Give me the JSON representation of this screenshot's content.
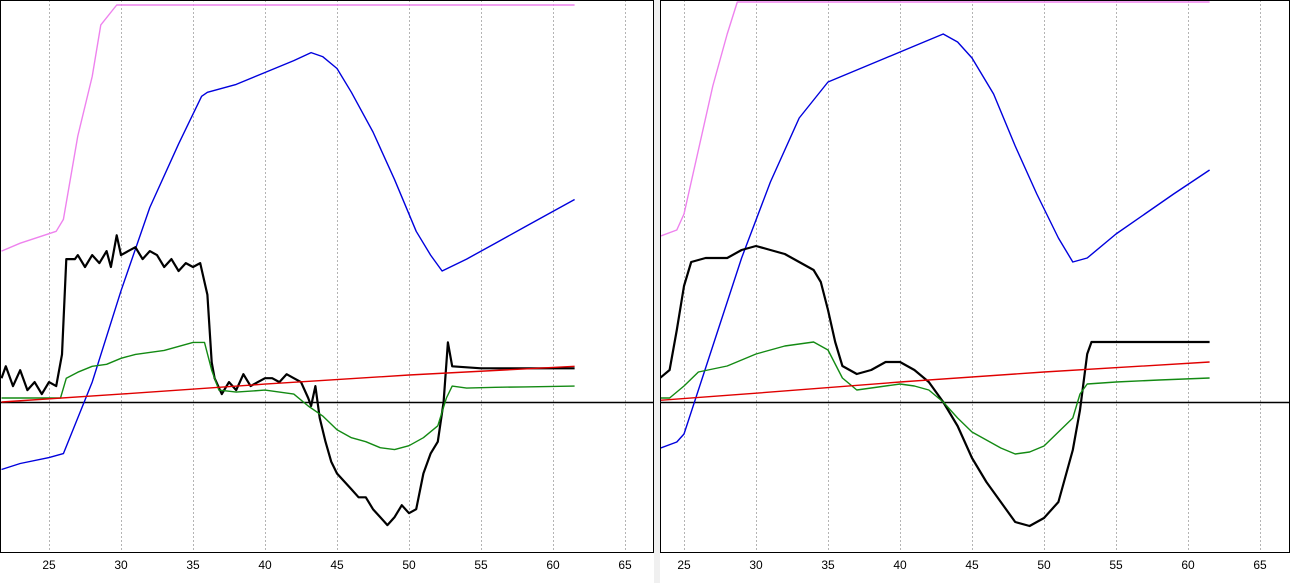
{
  "colors": {
    "background": "#ffffff",
    "grid": "#b4b4b4",
    "frame": "#000000",
    "zero_line": "#000000",
    "pink": "#ee82ee",
    "blue": "#0000dd",
    "black": "#000000",
    "green": "#138a13",
    "red": "#e00000"
  },
  "chart_data": [
    {
      "type": "line",
      "title": "",
      "xlabel": "",
      "ylabel": "",
      "xlim": [
        21.7,
        67.1
      ],
      "xticks": [
        "25",
        "30",
        "35",
        "40",
        "45",
        "50",
        "55",
        "60",
        "65"
      ],
      "grid": "vertical-dashed",
      "legend": "none",
      "y_axis_labels": "none",
      "zero_line": true,
      "series": [
        {
          "key": "pink",
          "style": "thin",
          "points": [
            [
              21.7,
              0.38
            ],
            [
              23,
              0.4
            ],
            [
              25.5,
              0.43
            ],
            [
              26,
              0.46
            ],
            [
              27,
              0.67
            ],
            [
              28,
              0.82
            ],
            [
              28.6,
              0.95
            ],
            [
              29.7,
              1.0
            ],
            [
              61.5,
              1.0
            ]
          ]
        },
        {
          "key": "blue",
          "style": "thin",
          "points": [
            [
              21.7,
              -0.17
            ],
            [
              23,
              -0.155
            ],
            [
              25,
              -0.14
            ],
            [
              26,
              -0.13
            ],
            [
              28,
              0.05
            ],
            [
              30,
              0.28
            ],
            [
              32,
              0.49
            ],
            [
              34,
              0.65
            ],
            [
              35.6,
              0.77
            ],
            [
              36,
              0.78
            ],
            [
              38,
              0.8
            ],
            [
              40,
              0.83
            ],
            [
              42,
              0.86
            ],
            [
              43.2,
              0.88
            ],
            [
              44,
              0.87
            ],
            [
              45,
              0.84
            ],
            [
              46,
              0.78
            ],
            [
              47.5,
              0.68
            ],
            [
              49,
              0.56
            ],
            [
              50.5,
              0.43
            ],
            [
              51.5,
              0.37
            ],
            [
              52.3,
              0.33
            ],
            [
              54,
              0.36
            ],
            [
              56,
              0.4
            ],
            [
              58,
              0.44
            ],
            [
              60,
              0.48
            ],
            [
              61.5,
              0.51
            ]
          ]
        },
        {
          "key": "black",
          "style": "thick",
          "points": [
            [
              21.7,
              0.06
            ],
            [
              22,
              0.09
            ],
            [
              22.5,
              0.04
            ],
            [
              23,
              0.08
            ],
            [
              23.5,
              0.03
            ],
            [
              24,
              0.05
            ],
            [
              24.5,
              0.02
            ],
            [
              25,
              0.05
            ],
            [
              25.5,
              0.04
            ],
            [
              25.9,
              0.12
            ],
            [
              26.2,
              0.36
            ],
            [
              26.8,
              0.36
            ],
            [
              27,
              0.37
            ],
            [
              27.5,
              0.34
            ],
            [
              28,
              0.37
            ],
            [
              28.5,
              0.35
            ],
            [
              29,
              0.38
            ],
            [
              29.3,
              0.34
            ],
            [
              29.7,
              0.42
            ],
            [
              30,
              0.37
            ],
            [
              30.5,
              0.38
            ],
            [
              31,
              0.39
            ],
            [
              31.5,
              0.36
            ],
            [
              32,
              0.38
            ],
            [
              32.5,
              0.37
            ],
            [
              33,
              0.34
            ],
            [
              33.5,
              0.36
            ],
            [
              34,
              0.33
            ],
            [
              34.5,
              0.35
            ],
            [
              35,
              0.34
            ],
            [
              35.5,
              0.35
            ],
            [
              36,
              0.27
            ],
            [
              36.3,
              0.1
            ],
            [
              36.5,
              0.06
            ],
            [
              37,
              0.02
            ],
            [
              37.5,
              0.05
            ],
            [
              38,
              0.03
            ],
            [
              38.5,
              0.07
            ],
            [
              39,
              0.04
            ],
            [
              39.5,
              0.05
            ],
            [
              40,
              0.06
            ],
            [
              40.5,
              0.06
            ],
            [
              41,
              0.05
            ],
            [
              41.5,
              0.07
            ],
            [
              42,
              0.06
            ],
            [
              42.5,
              0.05
            ],
            [
              43,
              0.01
            ],
            [
              43.2,
              -0.01
            ],
            [
              43.5,
              0.04
            ],
            [
              43.8,
              -0.04
            ],
            [
              44.2,
              -0.1
            ],
            [
              44.6,
              -0.15
            ],
            [
              45,
              -0.18
            ],
            [
              45.5,
              -0.2
            ],
            [
              46,
              -0.22
            ],
            [
              46.5,
              -0.24
            ],
            [
              47,
              -0.24
            ],
            [
              47.5,
              -0.27
            ],
            [
              48,
              -0.29
            ],
            [
              48.5,
              -0.31
            ],
            [
              49,
              -0.29
            ],
            [
              49.5,
              -0.26
            ],
            [
              50,
              -0.28
            ],
            [
              50.5,
              -0.27
            ],
            [
              51,
              -0.18
            ],
            [
              51.5,
              -0.13
            ],
            [
              52,
              -0.1
            ],
            [
              52.4,
              0.0
            ],
            [
              52.7,
              0.15
            ],
            [
              53,
              0.09
            ],
            [
              55,
              0.085
            ],
            [
              58,
              0.085
            ],
            [
              61.5,
              0.085
            ]
          ]
        },
        {
          "key": "green",
          "style": "thin",
          "points": [
            [
              21.7,
              0.01
            ],
            [
              24,
              0.01
            ],
            [
              25.8,
              0.01
            ],
            [
              26.2,
              0.06
            ],
            [
              27,
              0.075
            ],
            [
              28,
              0.09
            ],
            [
              29,
              0.095
            ],
            [
              30,
              0.11
            ],
            [
              31,
              0.12
            ],
            [
              32,
              0.125
            ],
            [
              33,
              0.13
            ],
            [
              34,
              0.14
            ],
            [
              35,
              0.15
            ],
            [
              35.8,
              0.15
            ],
            [
              36.3,
              0.08
            ],
            [
              36.8,
              0.03
            ],
            [
              38,
              0.025
            ],
            [
              40,
              0.03
            ],
            [
              42,
              0.02
            ],
            [
              43,
              -0.01
            ],
            [
              44,
              -0.035
            ],
            [
              45,
              -0.07
            ],
            [
              46,
              -0.09
            ],
            [
              47,
              -0.1
            ],
            [
              48,
              -0.115
            ],
            [
              49,
              -0.12
            ],
            [
              50,
              -0.11
            ],
            [
              51,
              -0.09
            ],
            [
              52,
              -0.06
            ],
            [
              52.6,
              0.01
            ],
            [
              53,
              0.04
            ],
            [
              54,
              0.035
            ],
            [
              56,
              0.037
            ],
            [
              58,
              0.038
            ],
            [
              61.5,
              0.04
            ]
          ]
        },
        {
          "key": "red",
          "style": "thin",
          "points": [
            [
              21.7,
              0.0
            ],
            [
              30,
              0.02
            ],
            [
              40,
              0.045
            ],
            [
              50,
              0.068
            ],
            [
              61.5,
              0.09
            ]
          ]
        }
      ]
    },
    {
      "type": "line",
      "title": "",
      "xlabel": "",
      "ylabel": "",
      "xlim": [
        21.7,
        67.1
      ],
      "xticks": [
        "25",
        "30",
        "35",
        "40",
        "45",
        "50",
        "55",
        "60",
        "65"
      ],
      "grid": "vertical-dashed",
      "legend": "none",
      "y_axis_labels": "none",
      "zero_line": true,
      "series": [
        {
          "key": "pink",
          "style": "thin",
          "points": [
            [
              21.7,
              0.4
            ],
            [
              23,
              0.41
            ],
            [
              24.5,
              0.43
            ],
            [
              25,
              0.47
            ],
            [
              26,
              0.63
            ],
            [
              27,
              0.79
            ],
            [
              28,
              0.92
            ],
            [
              28.7,
              1.0
            ],
            [
              61.5,
              1.0
            ]
          ]
        },
        {
          "key": "blue",
          "style": "thin",
          "points": [
            [
              21.7,
              -0.13
            ],
            [
              23,
              -0.12
            ],
            [
              24.5,
              -0.1
            ],
            [
              25,
              -0.08
            ],
            [
              27,
              0.14
            ],
            [
              29,
              0.36
            ],
            [
              31,
              0.55
            ],
            [
              33,
              0.71
            ],
            [
              35,
              0.8
            ],
            [
              37,
              0.83
            ],
            [
              39,
              0.86
            ],
            [
              41,
              0.89
            ],
            [
              43,
              0.92
            ],
            [
              44,
              0.9
            ],
            [
              45,
              0.86
            ],
            [
              46.5,
              0.77
            ],
            [
              48,
              0.64
            ],
            [
              49.5,
              0.52
            ],
            [
              51,
              0.41
            ],
            [
              52,
              0.35
            ],
            [
              53,
              0.36
            ],
            [
              55,
              0.42
            ],
            [
              57,
              0.47
            ],
            [
              59,
              0.52
            ],
            [
              61.5,
              0.58
            ]
          ]
        },
        {
          "key": "black",
          "style": "thick",
          "points": [
            [
              21.7,
              0.06
            ],
            [
              23,
              0.05
            ],
            [
              24,
              0.08
            ],
            [
              24.5,
              0.18
            ],
            [
              25,
              0.29
            ],
            [
              25.5,
              0.35
            ],
            [
              26.5,
              0.36
            ],
            [
              28,
              0.36
            ],
            [
              29,
              0.38
            ],
            [
              30,
              0.39
            ],
            [
              31,
              0.38
            ],
            [
              32,
              0.37
            ],
            [
              33,
              0.35
            ],
            [
              34,
              0.33
            ],
            [
              34.5,
              0.3
            ],
            [
              35,
              0.23
            ],
            [
              35.5,
              0.15
            ],
            [
              36,
              0.09
            ],
            [
              37,
              0.07
            ],
            [
              38,
              0.08
            ],
            [
              39,
              0.1
            ],
            [
              40,
              0.1
            ],
            [
              41,
              0.08
            ],
            [
              42,
              0.05
            ],
            [
              43,
              0.0
            ],
            [
              44,
              -0.06
            ],
            [
              45,
              -0.14
            ],
            [
              46,
              -0.2
            ],
            [
              47,
              -0.25
            ],
            [
              48,
              -0.3
            ],
            [
              49,
              -0.31
            ],
            [
              50,
              -0.29
            ],
            [
              51,
              -0.25
            ],
            [
              52,
              -0.12
            ],
            [
              52.5,
              -0.02
            ],
            [
              53,
              0.12
            ],
            [
              53.3,
              0.15
            ],
            [
              54,
              0.15
            ],
            [
              58,
              0.15
            ],
            [
              61.5,
              0.15
            ]
          ]
        },
        {
          "key": "green",
          "style": "thin",
          "points": [
            [
              21.7,
              0.01
            ],
            [
              24,
              0.01
            ],
            [
              25,
              0.04
            ],
            [
              26,
              0.075
            ],
            [
              28,
              0.09
            ],
            [
              30,
              0.12
            ],
            [
              32,
              0.14
            ],
            [
              34,
              0.15
            ],
            [
              35,
              0.13
            ],
            [
              36,
              0.06
            ],
            [
              37,
              0.03
            ],
            [
              38,
              0.035
            ],
            [
              40,
              0.045
            ],
            [
              41,
              0.04
            ],
            [
              42,
              0.03
            ],
            [
              43,
              0.0
            ],
            [
              44,
              -0.04
            ],
            [
              45,
              -0.075
            ],
            [
              46,
              -0.095
            ],
            [
              47,
              -0.115
            ],
            [
              48,
              -0.13
            ],
            [
              49,
              -0.125
            ],
            [
              50,
              -0.11
            ],
            [
              51,
              -0.075
            ],
            [
              52,
              -0.04
            ],
            [
              52.5,
              0.02
            ],
            [
              53,
              0.045
            ],
            [
              55,
              0.05
            ],
            [
              58,
              0.055
            ],
            [
              61.5,
              0.06
            ]
          ]
        },
        {
          "key": "red",
          "style": "thin",
          "points": [
            [
              21.7,
              0.0
            ],
            [
              30,
              0.022
            ],
            [
              40,
              0.05
            ],
            [
              50,
              0.075
            ],
            [
              61.5,
              0.1
            ]
          ]
        }
      ]
    }
  ]
}
